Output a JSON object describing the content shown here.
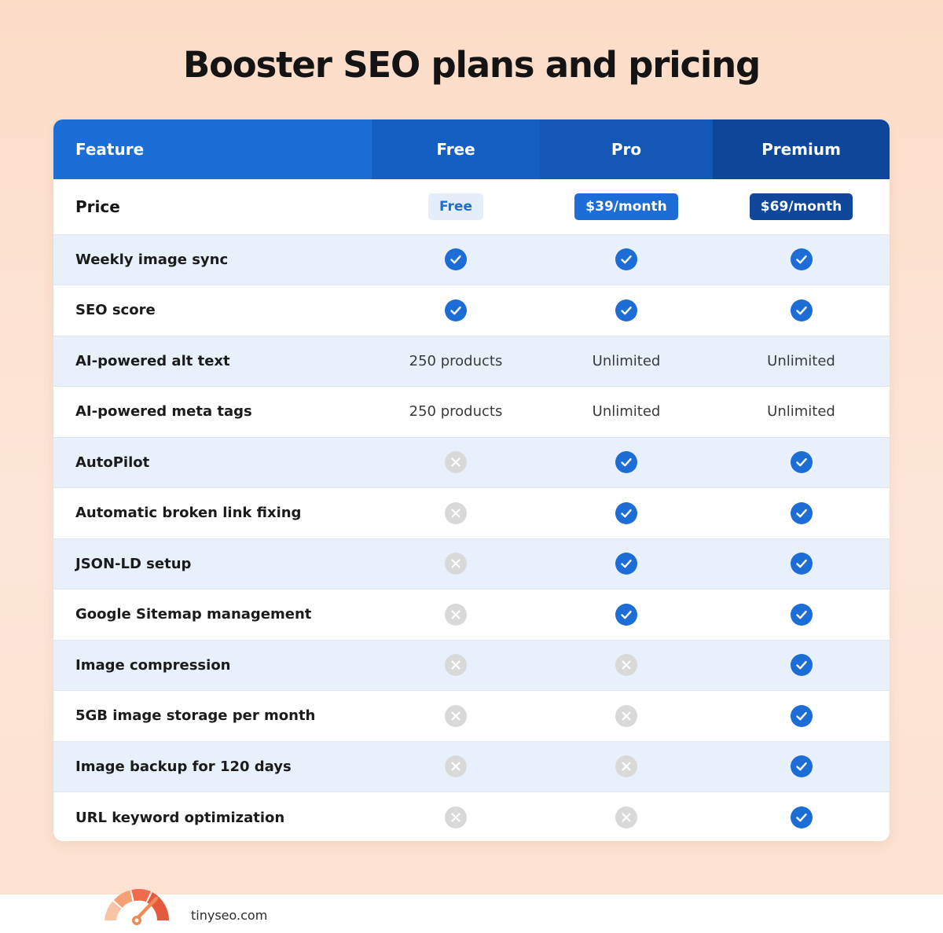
{
  "title": "Booster SEO plans and pricing",
  "columns": [
    "Feature",
    "Free",
    "Pro",
    "Premium"
  ],
  "price": {
    "label": "Price",
    "free": "Free",
    "pro": "$39/month",
    "premium": "$69/month"
  },
  "rows": [
    {
      "feature": "Weekly image sync",
      "free": "check",
      "pro": "check",
      "premium": "check"
    },
    {
      "feature": "SEO score",
      "free": "check",
      "pro": "check",
      "premium": "check"
    },
    {
      "feature": "AI-powered alt text",
      "free": "250 products",
      "pro": "Unlimited",
      "premium": "Unlimited"
    },
    {
      "feature": "AI-powered meta tags",
      "free": "250 products",
      "pro": "Unlimited",
      "premium": "Unlimited"
    },
    {
      "feature": "AutoPilot",
      "free": "cross",
      "pro": "check",
      "premium": "check"
    },
    {
      "feature": "Automatic broken link fixing",
      "free": "cross",
      "pro": "check",
      "premium": "check"
    },
    {
      "feature": "JSON-LD setup",
      "free": "cross",
      "pro": "check",
      "premium": "check"
    },
    {
      "feature": "Google Sitemap management",
      "free": "cross",
      "pro": "check",
      "premium": "check"
    },
    {
      "feature": "Image compression",
      "free": "cross",
      "pro": "cross",
      "premium": "check"
    },
    {
      "feature": "5GB image storage per month",
      "free": "cross",
      "pro": "cross",
      "premium": "check"
    },
    {
      "feature": "Image backup for 120 days",
      "free": "cross",
      "pro": "cross",
      "premium": "check"
    },
    {
      "feature": "URL keyword optimization",
      "free": "cross",
      "pro": "cross",
      "premium": "check"
    }
  ],
  "icons": {
    "included": "check-circle-icon",
    "excluded": "x-circle-icon",
    "logo": "speedometer-logo-icon"
  },
  "colors": {
    "check": "#1c6dd6",
    "cross": "#d9d9d9",
    "header": "#1c6dd6",
    "premium": "#0e4799"
  },
  "footer": {
    "domain": "tinyseo.com"
  }
}
